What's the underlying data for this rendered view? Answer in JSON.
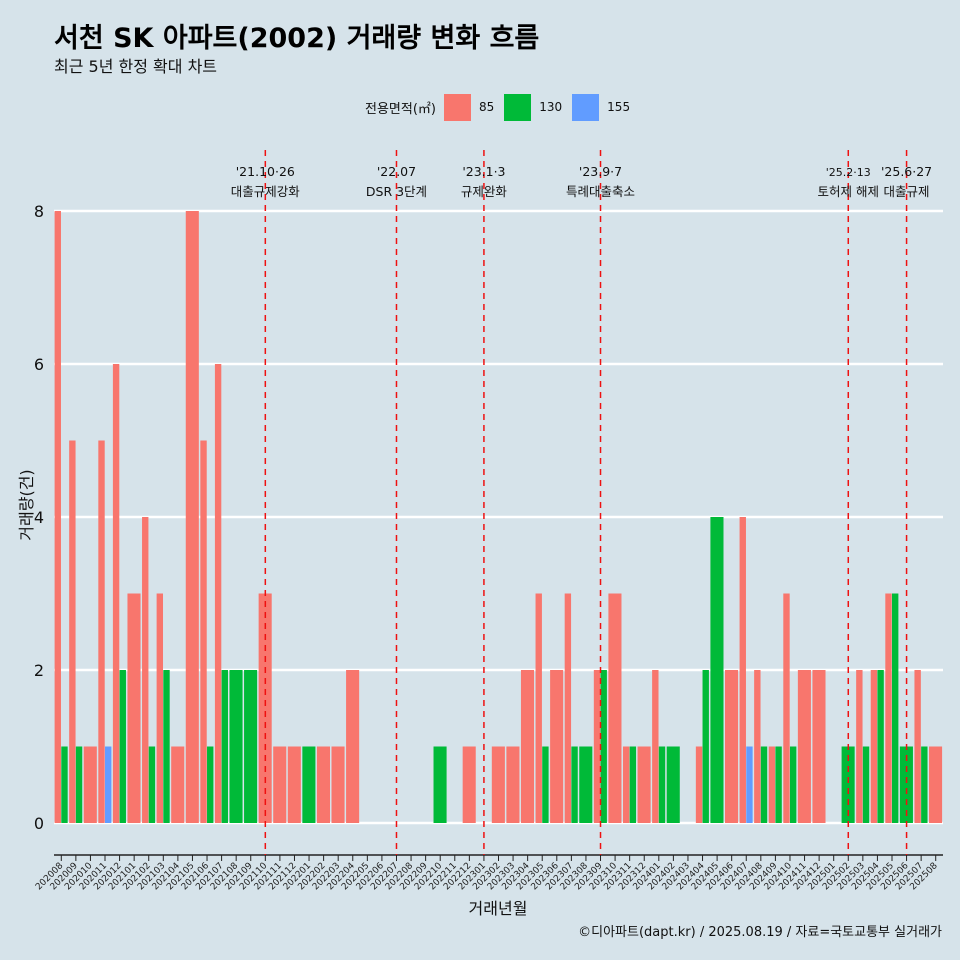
{
  "title": "서천 SK 아파트(2002) 거래량 변화 흐름",
  "subtitle": "최근 5년 한정 확대 차트",
  "legend": {
    "title": "전용면적(㎡)",
    "items": [
      {
        "label": "85",
        "color": "#f8766d"
      },
      {
        "label": "130",
        "color": "#00ba38"
      },
      {
        "label": "155",
        "color": "#619cff"
      }
    ]
  },
  "credit": "©디아파트(dapt.kr) / 2025.08.19 / 자료=국토교통부 실거래가",
  "chart_data": {
    "type": "bar",
    "xlabel": "거래년월",
    "ylabel": "거래량(건)",
    "ylim": [
      0,
      8
    ],
    "yticks": [
      0,
      2,
      4,
      6,
      8
    ],
    "grid": true,
    "legend_position": "top",
    "categories": [
      "202008",
      "202009",
      "202010",
      "202011",
      "202012",
      "202101",
      "202102",
      "202103",
      "202104",
      "202105",
      "202106",
      "202107",
      "202108",
      "202109",
      "202110",
      "202111",
      "202112",
      "202201",
      "202202",
      "202203",
      "202204",
      "202205",
      "202206",
      "202207",
      "202208",
      "202209",
      "202210",
      "202211",
      "202212",
      "202301",
      "202302",
      "202303",
      "202304",
      "202305",
      "202306",
      "202307",
      "202308",
      "202309",
      "202310",
      "202311",
      "202312",
      "202401",
      "202402",
      "202403",
      "202404",
      "202405",
      "202406",
      "202407",
      "202408",
      "202409",
      "202410",
      "202411",
      "202412",
      "202501",
      "202502",
      "202503",
      "202504",
      "202505",
      "202506",
      "202507",
      "202508"
    ],
    "series": [
      {
        "name": "85",
        "color": "#f8766d",
        "values": [
          8,
          5,
          1,
          5,
          6,
          3,
          4,
          3,
          1,
          8,
          5,
          6,
          0,
          0,
          3,
          1,
          1,
          0,
          1,
          1,
          2,
          0,
          0,
          0,
          0,
          0,
          0,
          0,
          1,
          0,
          1,
          1,
          2,
          3,
          2,
          3,
          0,
          2,
          3,
          1,
          1,
          2,
          0,
          0,
          1,
          0,
          2,
          4,
          2,
          1,
          3,
          2,
          2,
          0,
          0,
          2,
          2,
          3,
          0,
          2,
          1
        ]
      },
      {
        "name": "130",
        "color": "#00ba38",
        "values": [
          1,
          1,
          0,
          0,
          2,
          0,
          1,
          2,
          0,
          0,
          1,
          2,
          2,
          2,
          0,
          0,
          0,
          1,
          0,
          0,
          0,
          0,
          0,
          0,
          0,
          0,
          1,
          0,
          0,
          0,
          0,
          0,
          0,
          1,
          0,
          1,
          1,
          2,
          0,
          1,
          0,
          1,
          1,
          0,
          2,
          4,
          0,
          0,
          1,
          1,
          1,
          0,
          0,
          0,
          1,
          1,
          2,
          3,
          1,
          1,
          0
        ]
      },
      {
        "name": "155",
        "color": "#619cff",
        "values": [
          0,
          0,
          0,
          1,
          0,
          0,
          0,
          0,
          0,
          0,
          0,
          0,
          0,
          0,
          0,
          0,
          0,
          0,
          0,
          0,
          0,
          0,
          0,
          0,
          0,
          0,
          0,
          0,
          0,
          0,
          0,
          0,
          0,
          0,
          0,
          0,
          0,
          0,
          0,
          0,
          0,
          0,
          0,
          0,
          0,
          0,
          0,
          1,
          0,
          0,
          0,
          0,
          0,
          0,
          0,
          0,
          0,
          0,
          0,
          0,
          0
        ]
      }
    ],
    "annotations": [
      {
        "at": "202110",
        "date": "'21.10·26",
        "label": "대출규제강화"
      },
      {
        "at": "202207",
        "date": "'22.07",
        "label": "DSR 3단계"
      },
      {
        "at": "202301",
        "date": "'23.1·3",
        "label": "규제완화"
      },
      {
        "at": "202309",
        "date": "'23.9·7",
        "label": "특례대출축소"
      },
      {
        "at": "202502",
        "date": "'25.2·13",
        "label": "토허제 해제"
      },
      {
        "at": "202506",
        "date": "'25.6·27",
        "label": "대출규제"
      }
    ]
  }
}
